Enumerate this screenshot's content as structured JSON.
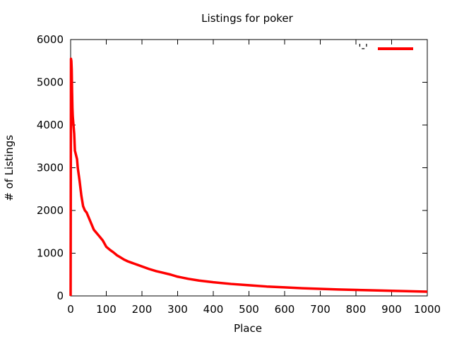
{
  "chart_data": {
    "type": "line",
    "title": "Listings for poker",
    "xlabel": "Place",
    "ylabel": "# of Listings",
    "xlim": [
      0,
      1000
    ],
    "ylim": [
      0,
      6000
    ],
    "x_ticks": [
      0,
      100,
      200,
      300,
      400,
      500,
      600,
      700,
      800,
      900,
      1000
    ],
    "y_ticks": [
      0,
      1000,
      2000,
      3000,
      4000,
      5000,
      6000
    ],
    "grid": false,
    "legend_position": "top-right",
    "series": [
      {
        "name": "'-'",
        "color": "#ff0000",
        "x": [
          0,
          0.5,
          1,
          2,
          3,
          4,
          5,
          6,
          8,
          10,
          12,
          15,
          18,
          20,
          25,
          30,
          35,
          40,
          45,
          50,
          55,
          60,
          65,
          70,
          80,
          90,
          100,
          110,
          120,
          130,
          140,
          150,
          160,
          170,
          180,
          190,
          200,
          220,
          240,
          260,
          280,
          300,
          330,
          360,
          400,
          450,
          500,
          550,
          600,
          650,
          700,
          750,
          800,
          850,
          900,
          950,
          1000
        ],
        "y": [
          0,
          2800,
          5550,
          5500,
          5300,
          4800,
          4400,
          4200,
          4000,
          3800,
          3400,
          3300,
          3200,
          3000,
          2700,
          2350,
          2100,
          2000,
          1950,
          1850,
          1750,
          1650,
          1550,
          1500,
          1400,
          1300,
          1150,
          1080,
          1020,
          950,
          900,
          850,
          810,
          780,
          750,
          720,
          690,
          630,
          580,
          540,
          500,
          450,
          400,
          360,
          320,
          280,
          250,
          220,
          200,
          180,
          165,
          150,
          140,
          130,
          120,
          110,
          100
        ]
      }
    ]
  }
}
